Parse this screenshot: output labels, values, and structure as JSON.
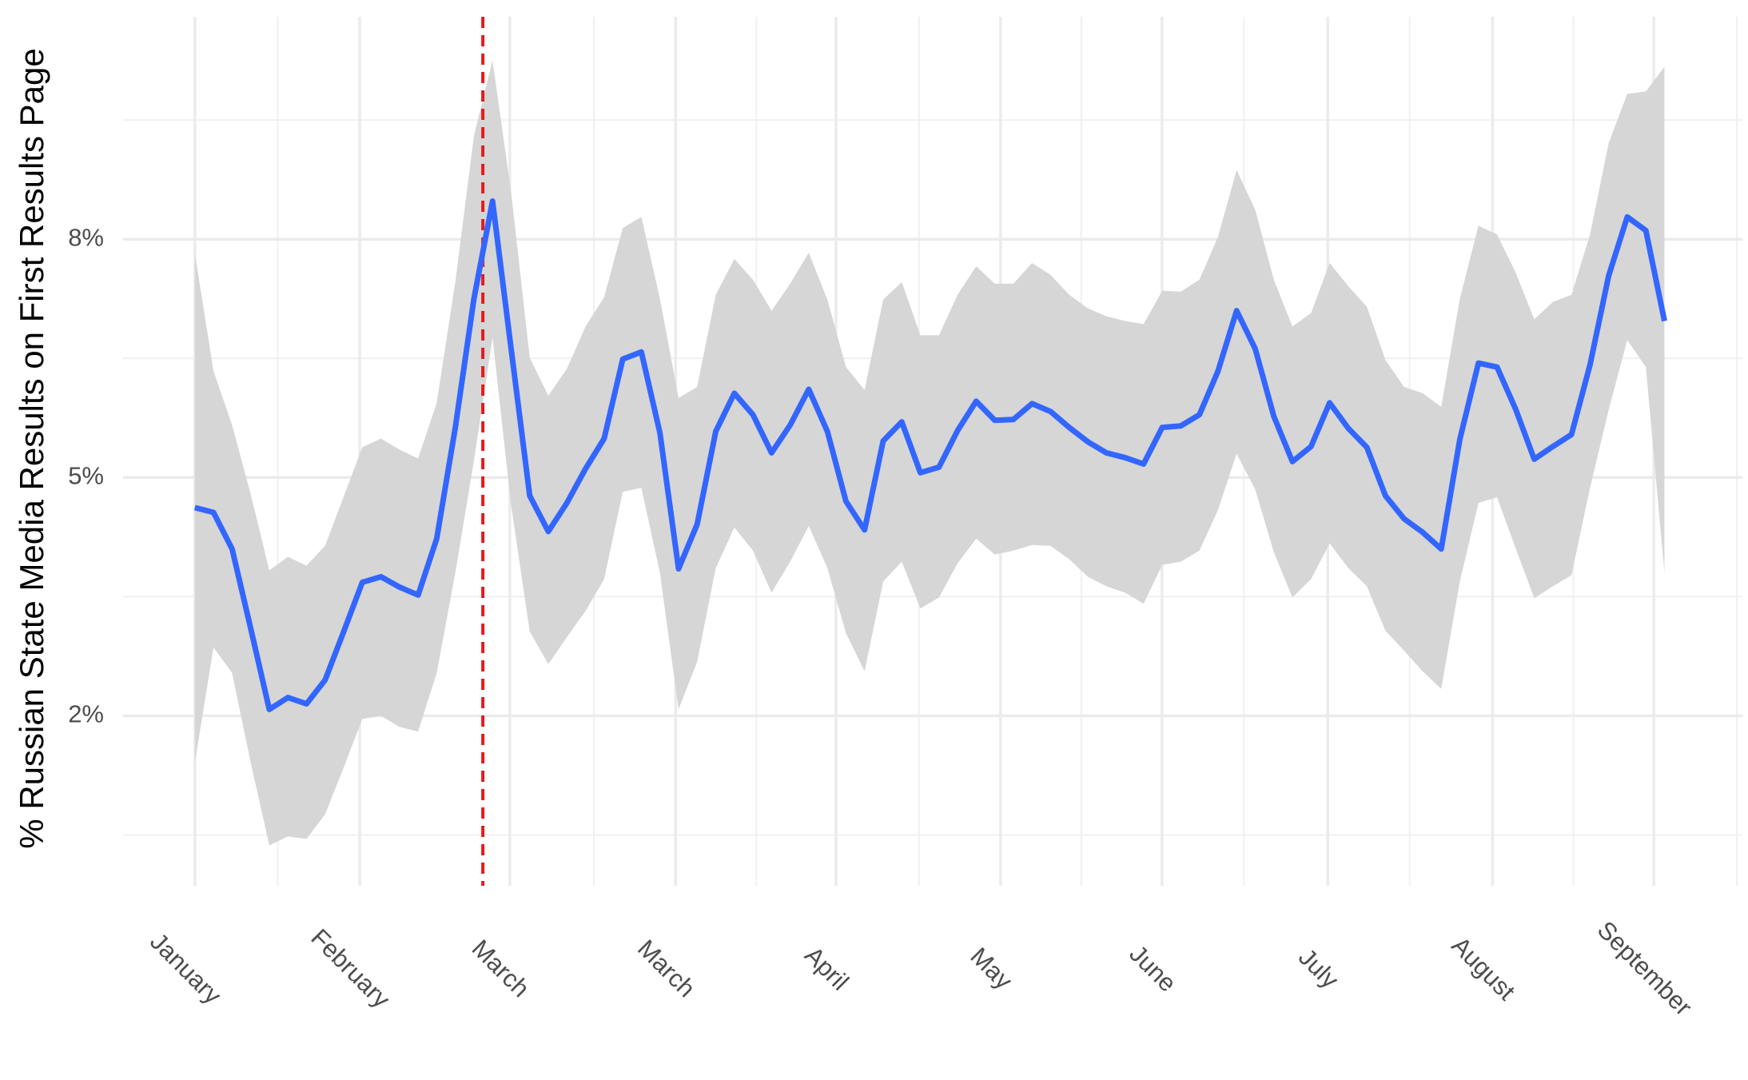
{
  "chart_data": {
    "type": "line",
    "y_label": "% Russian State Media Results on First Results Page",
    "x": [
      0,
      1,
      2,
      3,
      4,
      5,
      6,
      7,
      8,
      9,
      10,
      11,
      12,
      13,
      14,
      15,
      16,
      17,
      18,
      19,
      20,
      21,
      22,
      23,
      24,
      25,
      26,
      27,
      28,
      29,
      30,
      31,
      32,
      33,
      34,
      35,
      36,
      37,
      38,
      39,
      40,
      41,
      42,
      43,
      44,
      45,
      46,
      47,
      48,
      49,
      50,
      51,
      52,
      53,
      54,
      55,
      56,
      57,
      58,
      59,
      60,
      61,
      62,
      63,
      64,
      65,
      66,
      67,
      68,
      69,
      70,
      71,
      72,
      73,
      74,
      75,
      76,
      77,
      78,
      79
    ],
    "series": [
      {
        "color": "#3366ff",
        "values": [
          4.62,
          4.56,
          4.1,
          3.1,
          2.08,
          2.23,
          2.15,
          2.45,
          3.06,
          3.68,
          3.75,
          3.62,
          3.52,
          4.23,
          5.63,
          7.25,
          8.48,
          6.62,
          4.77,
          4.32,
          4.68,
          5.11,
          5.49,
          6.49,
          6.58,
          5.56,
          3.85,
          4.41,
          5.58,
          6.06,
          5.79,
          5.31,
          5.66,
          6.11,
          5.58,
          4.7,
          4.34,
          5.46,
          5.7,
          5.06,
          5.13,
          5.59,
          5.96,
          5.72,
          5.73,
          5.93,
          5.83,
          5.63,
          5.45,
          5.31,
          5.25,
          5.17,
          5.63,
          5.65,
          5.79,
          6.34,
          7.1,
          6.62,
          5.77,
          5.2,
          5.39,
          5.94,
          5.62,
          5.38,
          4.77,
          4.48,
          4.31,
          4.1,
          5.48,
          6.44,
          6.39,
          5.86,
          5.23,
          5.39,
          5.54,
          6.42,
          7.54,
          8.28,
          8.11,
          6.97
        ]
      }
    ],
    "band": {
      "color": "#d6d6d6",
      "upper": [
        7.82,
        6.34,
        5.66,
        4.79,
        3.83,
        4.0,
        3.89,
        4.14,
        4.76,
        5.38,
        5.49,
        5.35,
        5.24,
        5.94,
        7.46,
        9.3,
        10.25,
        8.59,
        6.51,
        6.03,
        6.37,
        6.9,
        7.27,
        8.14,
        8.28,
        7.25,
        6.0,
        6.14,
        7.3,
        7.75,
        7.49,
        7.1,
        7.44,
        7.83,
        7.24,
        6.39,
        6.1,
        7.24,
        7.46,
        6.79,
        6.79,
        7.3,
        7.66,
        7.44,
        7.44,
        7.7,
        7.55,
        7.3,
        7.13,
        7.03,
        6.97,
        6.93,
        7.35,
        7.34,
        7.49,
        8.03,
        8.87,
        8.37,
        7.49,
        6.9,
        7.07,
        7.7,
        7.41,
        7.15,
        6.48,
        6.14,
        6.06,
        5.89,
        7.25,
        8.17,
        8.06,
        7.58,
        6.99,
        7.21,
        7.3,
        8.06,
        9.21,
        9.83,
        9.86,
        10.17
      ],
      "lower": [
        1.41,
        2.86,
        2.54,
        1.41,
        0.37,
        0.48,
        0.45,
        0.76,
        1.35,
        1.96,
        2.0,
        1.86,
        1.8,
        2.54,
        3.8,
        5.21,
        6.76,
        4.65,
        3.06,
        2.65,
        2.99,
        3.32,
        3.72,
        4.82,
        4.87,
        3.8,
        2.08,
        2.68,
        3.86,
        4.37,
        4.08,
        3.55,
        3.94,
        4.39,
        3.86,
        3.04,
        2.56,
        3.69,
        3.94,
        3.35,
        3.49,
        3.92,
        4.23,
        4.03,
        4.08,
        4.15,
        4.14,
        3.97,
        3.75,
        3.63,
        3.55,
        3.41,
        3.9,
        3.94,
        4.08,
        4.59,
        5.3,
        4.85,
        4.06,
        3.49,
        3.72,
        4.17,
        3.86,
        3.63,
        3.07,
        2.82,
        2.56,
        2.34,
        3.69,
        4.68,
        4.75,
        4.11,
        3.48,
        3.63,
        3.77,
        4.87,
        5.85,
        6.73,
        6.39,
        3.8
      ]
    },
    "vline": {
      "x": 15.48,
      "color": "#e41a1c"
    },
    "xlim": [
      -3.86,
      83.19
    ],
    "ylim": [
      -0.14,
      10.8
    ],
    "xticks": [
      {
        "value": 0,
        "label": "January"
      },
      {
        "value": 8.86,
        "label": "February"
      },
      {
        "value": 16.93,
        "label": "March"
      },
      {
        "value": 25.84,
        "label": "March"
      },
      {
        "value": 34.46,
        "label": "April"
      },
      {
        "value": 43.31,
        "label": "May"
      },
      {
        "value": 51.99,
        "label": "June"
      },
      {
        "value": 60.9,
        "label": "July"
      },
      {
        "value": 69.76,
        "label": "August"
      },
      {
        "value": 78.43,
        "label": "September"
      }
    ],
    "x_minor_grid": [
      4.46,
      21.45,
      30.18,
      38.92,
      47.65,
      56.39,
      65.3,
      74.1,
      82.89
    ],
    "yticks": [
      {
        "value": 2,
        "label": "2%"
      },
      {
        "value": 5,
        "label": "5%"
      },
      {
        "value": 8,
        "label": "8%"
      }
    ],
    "y_minor_grid": [
      0.5,
      3.5,
      6.5,
      9.5
    ],
    "grid": true
  }
}
